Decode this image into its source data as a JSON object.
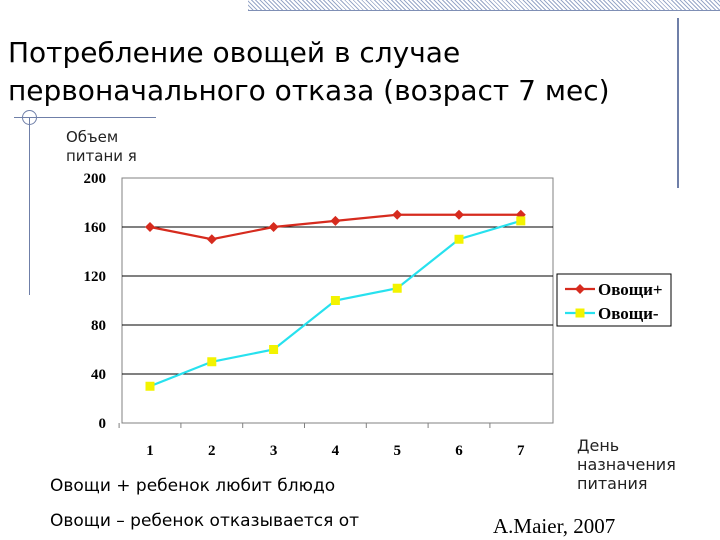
{
  "slide": {
    "title": "Потребление овощей в случае первоначального отказа (возраст 7 мес)",
    "note_plus": "Овощи + ребенок любит блюдо",
    "note_minus": "Овощи – ребенок отказывается от",
    "author": "A.Maier, 2007"
  },
  "chart_data": {
    "type": "line",
    "title": "",
    "xlabel": "День назначения питания",
    "ylabel": "Объем питания",
    "ylabel_display": "Объем питани я",
    "categories": [
      "1",
      "2",
      "3",
      "4",
      "5",
      "6",
      "7"
    ],
    "y_ticks": [
      "0",
      "40",
      "80",
      "120",
      "160",
      "200"
    ],
    "ylim": [
      0,
      200
    ],
    "grid": "horizontal",
    "legend_placement": "right",
    "series": [
      {
        "name": "Овощи+",
        "color": "#d62b1e",
        "marker": "diamond",
        "values": [
          160,
          150,
          160,
          165,
          170,
          170,
          170
        ]
      },
      {
        "name": "Овощи-",
        "color": "#27e1ee",
        "marker_color": "#f3f300",
        "marker": "square",
        "values": [
          30,
          50,
          60,
          100,
          110,
          150,
          165
        ]
      }
    ]
  }
}
